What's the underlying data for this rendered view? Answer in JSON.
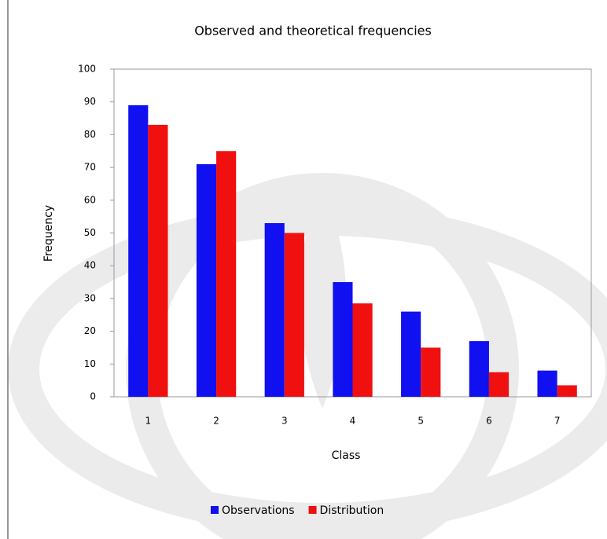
{
  "chart_data": {
    "type": "bar",
    "title": "Observed and theoretical frequencies",
    "x_label": "Class",
    "y_label": "Frequency",
    "categories": [
      "1",
      "2",
      "3",
      "4",
      "5",
      "6",
      "7"
    ],
    "series": [
      {
        "name": "Observations",
        "color": "#1010f0",
        "values": [
          89,
          71,
          53,
          35,
          26,
          17,
          8
        ]
      },
      {
        "name": "Distribution",
        "color": "#f01010",
        "values": [
          83,
          75,
          50,
          28.5,
          15,
          7.5,
          3.5
        ]
      }
    ],
    "ylim": [
      0,
      100
    ],
    "yticks": [
      0,
      10,
      20,
      30,
      40,
      50,
      60,
      70,
      80,
      90,
      100
    ],
    "grid": false,
    "legend": "bottom"
  }
}
